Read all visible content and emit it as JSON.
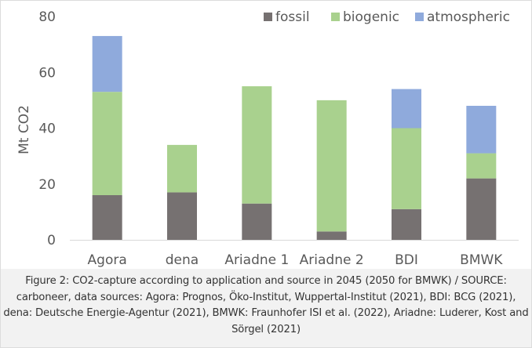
{
  "chart_data": {
    "type": "bar",
    "stacked": true,
    "categories": [
      "Agora",
      "dena",
      "Ariadne 1",
      "Ariadne 2",
      "BDI",
      "BMWK"
    ],
    "series": [
      {
        "name": "fossil",
        "color": "#767171",
        "values": [
          16,
          17,
          13,
          3,
          11,
          22
        ]
      },
      {
        "name": "biogenic",
        "color": "#a9d18e",
        "values": [
          37,
          17,
          42,
          47,
          29,
          9
        ]
      },
      {
        "name": "atmospheric",
        "color": "#8faadc",
        "values": [
          20,
          0,
          0,
          0,
          14,
          17
        ]
      }
    ],
    "ylabel": "Mt CO2",
    "ylim": [
      0,
      80
    ],
    "yticks": [
      0,
      20,
      40,
      60,
      80
    ],
    "grid": false,
    "legend": "top-right"
  },
  "caption": "Figure 2: CO2-capture according to application and source in 2045 (2050 for BMWK) / SOURCE: carboneer, data sources: Agora: Prognos, Öko-Institut, Wuppertal-Institut (2021), BDI: BCG (2021), dena: Deutsche Energie-Agentur (2021), BMWK: Fraunhofer ISI et al. (2022), Ariadne: Luderer, Kost and Sörgel (2021)"
}
